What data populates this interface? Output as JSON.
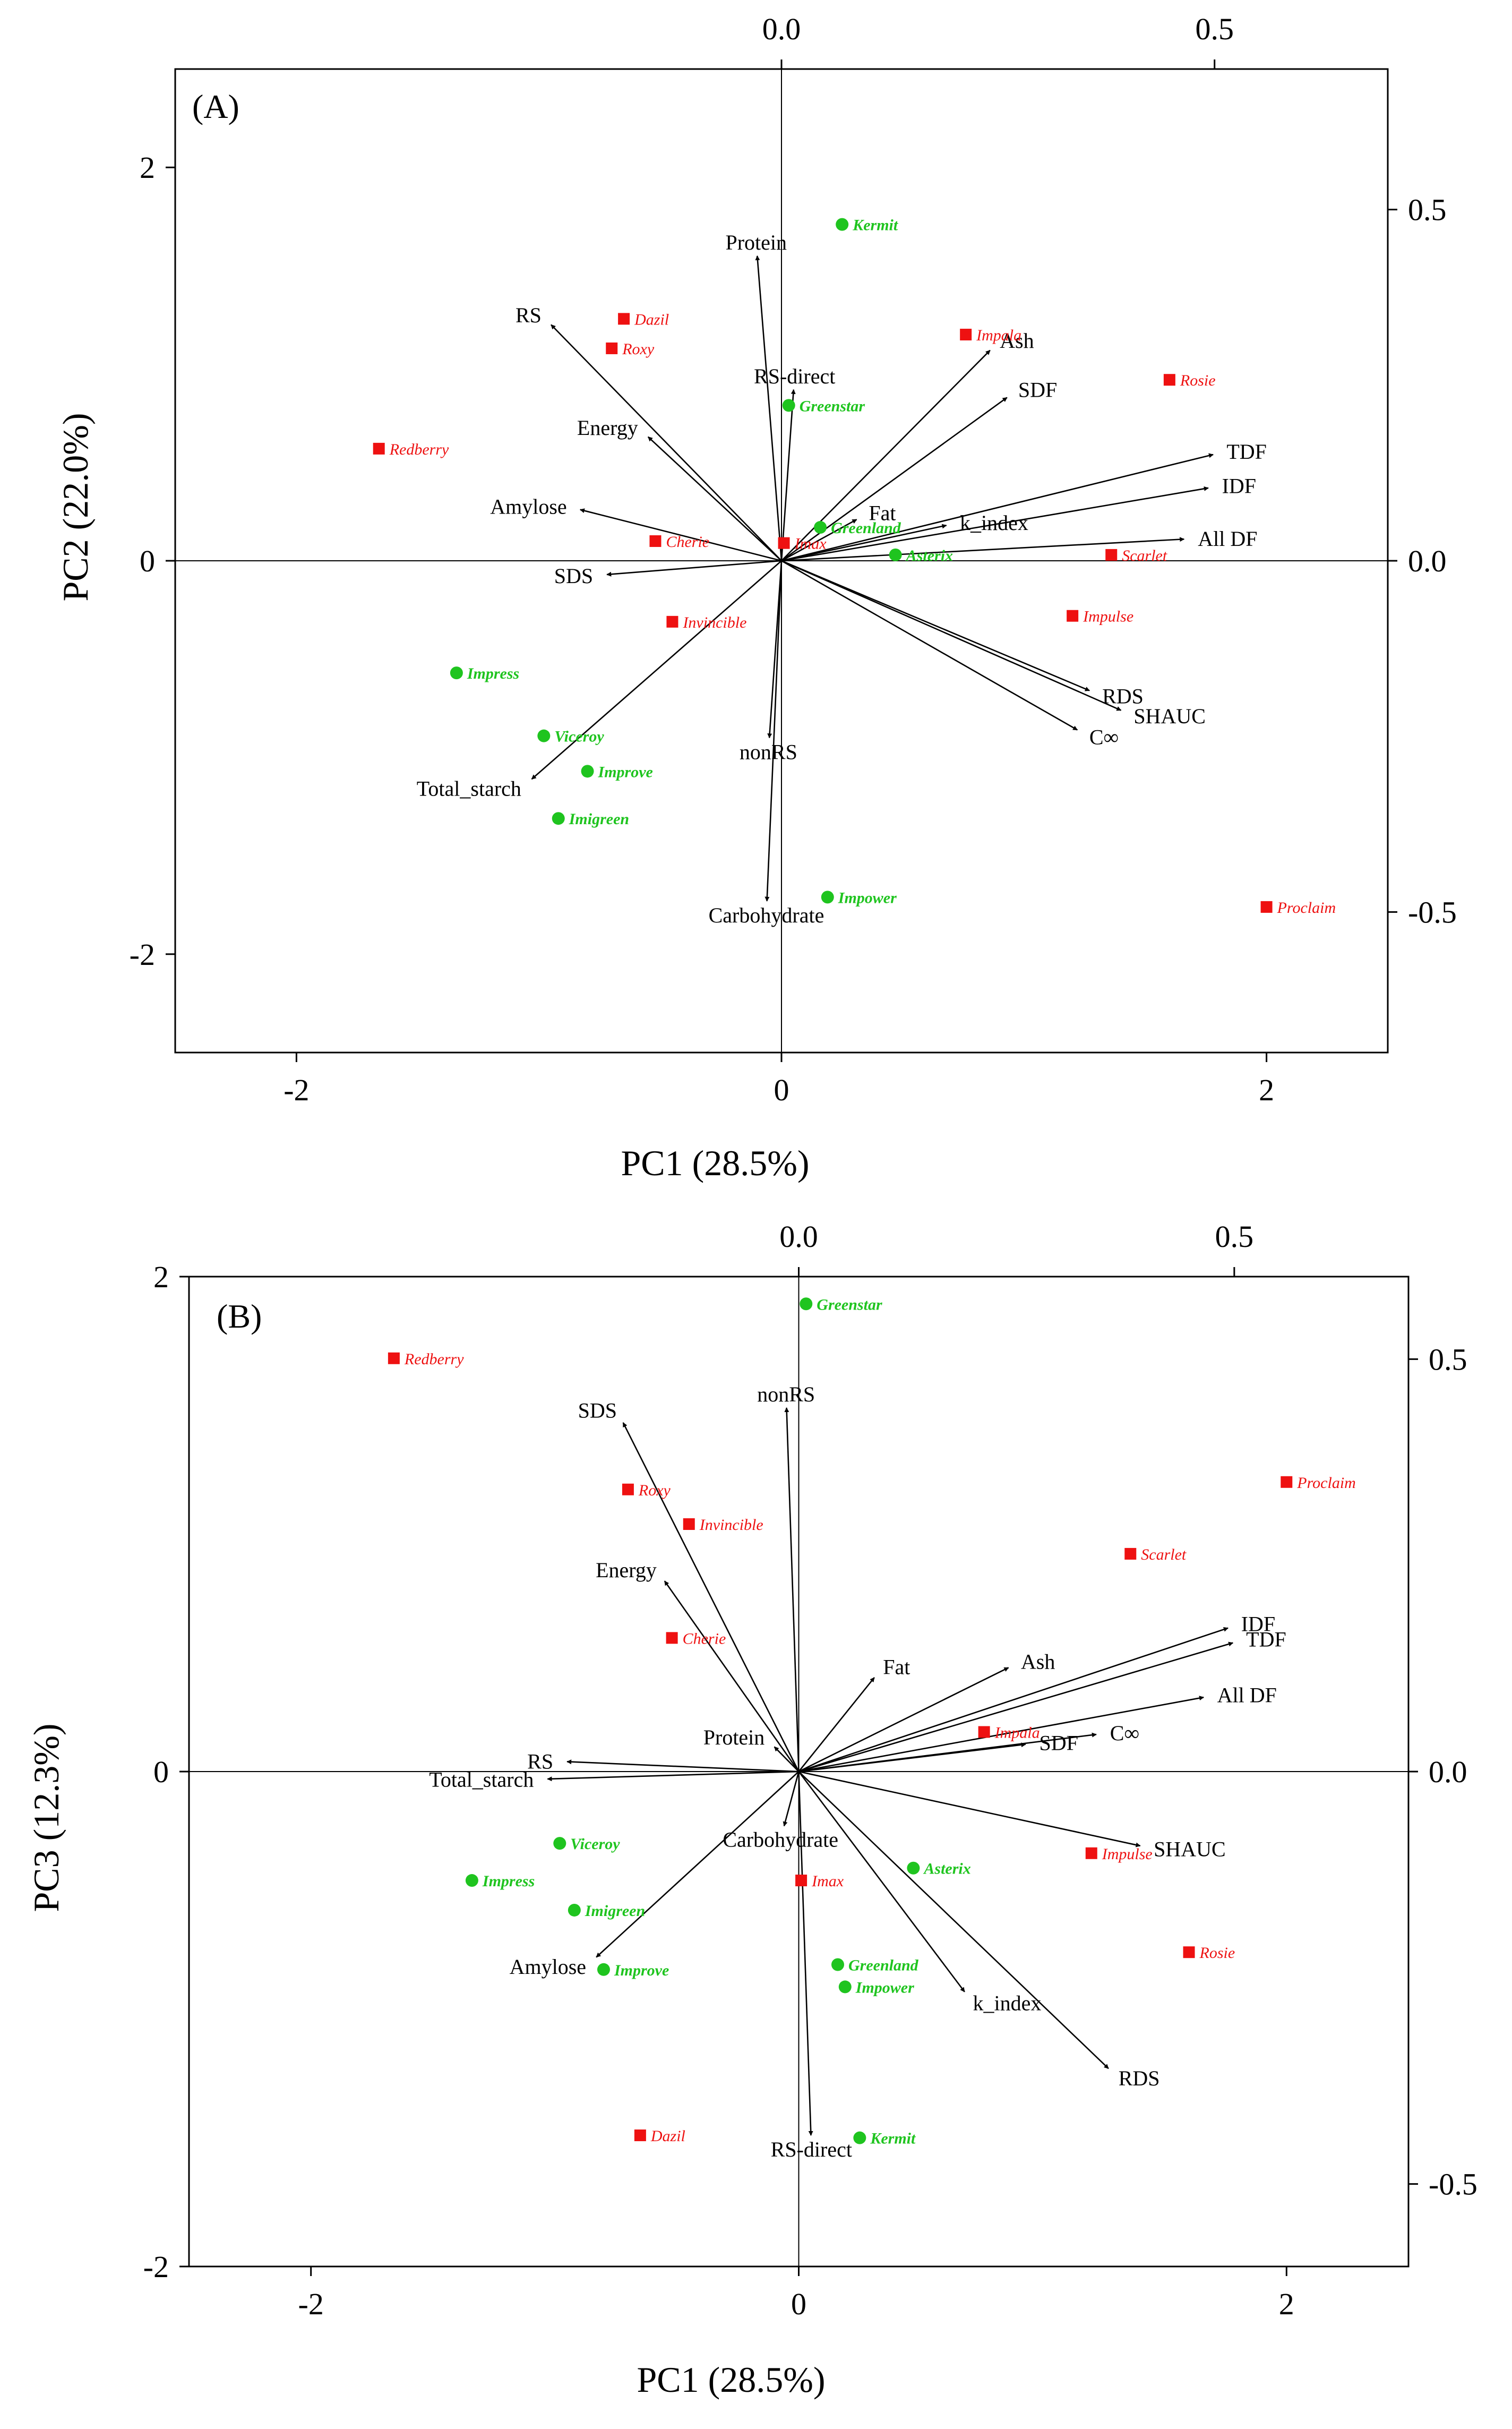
{
  "colors": {
    "red_group": "#ee1111",
    "green_group": "#1fc41f",
    "arrows": "#000000",
    "frame": "#000000"
  },
  "chart_data": [
    {
      "type": "scatter",
      "subtype": "biplot",
      "panel_label": "(A)",
      "xlabel": "PC1 (28.5%)",
      "ylabel": "PC2 (22.0%)",
      "xlim": [
        -2.5,
        2.5
      ],
      "ylim": [
        -2.5,
        2.5
      ],
      "top_axis": {
        "range": [
          -0.7,
          0.7
        ],
        "ticks": [
          "0.0",
          "0.5"
        ]
      },
      "right_axis": {
        "range": [
          -0.7,
          0.7
        ],
        "ticks": [
          "-0.5",
          "0.0",
          "0.5"
        ]
      },
      "xticks": [
        "-2",
        "0",
        "2"
      ],
      "yticks": [
        "-2",
        "0",
        "2"
      ],
      "cultivars": [
        {
          "name": "Kermit",
          "group": "green",
          "x": 0.25,
          "y": 1.71
        },
        {
          "name": "Dazil",
          "group": "red",
          "x": -0.65,
          "y": 1.23
        },
        {
          "name": "Roxy",
          "group": "red",
          "x": -0.7,
          "y": 1.08
        },
        {
          "name": "Impala",
          "group": "red",
          "x": 0.76,
          "y": 1.15
        },
        {
          "name": "Rosie",
          "group": "red",
          "x": 1.6,
          "y": 0.92
        },
        {
          "name": "Greenstar",
          "group": "green",
          "x": 0.03,
          "y": 0.79
        },
        {
          "name": "Redberry",
          "group": "red",
          "x": -1.66,
          "y": 0.57
        },
        {
          "name": "Greenland",
          "group": "green",
          "x": 0.16,
          "y": 0.17
        },
        {
          "name": "Imax",
          "group": "red",
          "x": 0.01,
          "y": 0.09
        },
        {
          "name": "Cherie",
          "group": "red",
          "x": -0.52,
          "y": 0.1
        },
        {
          "name": "Asterix",
          "group": "green",
          "x": 0.47,
          "y": 0.03
        },
        {
          "name": "Scarlet",
          "group": "red",
          "x": 1.36,
          "y": 0.03
        },
        {
          "name": "Invincible",
          "group": "red",
          "x": -0.45,
          "y": -0.31
        },
        {
          "name": "Impulse",
          "group": "red",
          "x": 1.2,
          "y": -0.28
        },
        {
          "name": "Impress",
          "group": "green",
          "x": -1.34,
          "y": -0.57
        },
        {
          "name": "Viceroy",
          "group": "green",
          "x": -0.98,
          "y": -0.89
        },
        {
          "name": "Improve",
          "group": "green",
          "x": -0.8,
          "y": -1.07
        },
        {
          "name": "Imigreen",
          "group": "green",
          "x": -0.92,
          "y": -1.31
        },
        {
          "name": "Impower",
          "group": "green",
          "x": 0.19,
          "y": -1.71
        },
        {
          "name": "Proclaim",
          "group": "red",
          "x": 2.0,
          "y": -1.76
        }
      ],
      "variables": [
        {
          "name": "Protein",
          "x": -0.1,
          "y": 1.55
        },
        {
          "name": "RS",
          "x": -0.95,
          "y": 1.2
        },
        {
          "name": "RS-direct",
          "x": 0.05,
          "y": 0.87
        },
        {
          "name": "Energy",
          "x": -0.55,
          "y": 0.63
        },
        {
          "name": "Amylose",
          "x": -0.83,
          "y": 0.26
        },
        {
          "name": "SDS",
          "x": -0.72,
          "y": -0.07
        },
        {
          "name": "Ash",
          "x": 0.86,
          "y": 1.07
        },
        {
          "name": "SDF",
          "x": 0.93,
          "y": 0.83
        },
        {
          "name": "TDF",
          "x": 1.78,
          "y": 0.54
        },
        {
          "name": "IDF",
          "x": 1.76,
          "y": 0.37
        },
        {
          "name": "All DF",
          "x": 1.66,
          "y": 0.11
        },
        {
          "name": "Fat",
          "x": 0.31,
          "y": 0.21
        },
        {
          "name": "k_index",
          "x": 0.68,
          "y": 0.18
        },
        {
          "name": "RDS",
          "x": 1.27,
          "y": -0.66
        },
        {
          "name": "SHAUC",
          "x": 1.4,
          "y": -0.76
        },
        {
          "name": "C∞",
          "x": 1.22,
          "y": -0.86
        },
        {
          "name": "nonRS",
          "x": -0.05,
          "y": -0.9
        },
        {
          "name": "Total_starch",
          "x": -1.03,
          "y": -1.11
        },
        {
          "name": "Carbohydrate",
          "x": -0.06,
          "y": -1.73
        }
      ]
    },
    {
      "type": "scatter",
      "subtype": "biplot",
      "panel_label": "(B)",
      "xlabel": "PC1 (28.5%)",
      "ylabel": "PC3 (12.3%)",
      "xlim": [
        -2.5,
        2.5
      ],
      "ylim": [
        -2.0,
        2.0
      ],
      "top_axis": {
        "range": [
          -0.7,
          0.7
        ],
        "ticks": [
          "0.0",
          "0.5"
        ]
      },
      "right_axis": {
        "range": [
          -0.6,
          0.6
        ],
        "ticks": [
          "-0.5",
          "0.0",
          "0.5"
        ]
      },
      "xticks": [
        "-2",
        "0",
        "2"
      ],
      "yticks": [
        "-2",
        "0",
        "2"
      ],
      "cultivars": [
        {
          "name": "Greenstar",
          "group": "green",
          "x": 0.03,
          "y": 1.89
        },
        {
          "name": "Redberry",
          "group": "red",
          "x": -1.66,
          "y": 1.67
        },
        {
          "name": "Proclaim",
          "group": "red",
          "x": 2.0,
          "y": 1.17
        },
        {
          "name": "Roxy",
          "group": "red",
          "x": -0.7,
          "y": 1.14
        },
        {
          "name": "Invincible",
          "group": "red",
          "x": -0.45,
          "y": 1.0
        },
        {
          "name": "Scarlet",
          "group": "red",
          "x": 1.36,
          "y": 0.88
        },
        {
          "name": "Cherie",
          "group": "red",
          "x": -0.52,
          "y": 0.54
        },
        {
          "name": "Impala",
          "group": "red",
          "x": 0.76,
          "y": 0.16
        },
        {
          "name": "Viceroy",
          "group": "green",
          "x": -0.98,
          "y": -0.29
        },
        {
          "name": "Impulse",
          "group": "red",
          "x": 1.2,
          "y": -0.33
        },
        {
          "name": "Asterix",
          "group": "green",
          "x": 0.47,
          "y": -0.39
        },
        {
          "name": "Impress",
          "group": "green",
          "x": -1.34,
          "y": -0.44
        },
        {
          "name": "Imax",
          "group": "red",
          "x": 0.01,
          "y": -0.44
        },
        {
          "name": "Imigreen",
          "group": "green",
          "x": -0.92,
          "y": -0.56
        },
        {
          "name": "Rosie",
          "group": "red",
          "x": 1.6,
          "y": -0.73
        },
        {
          "name": "Improve",
          "group": "green",
          "x": -0.8,
          "y": -0.8
        },
        {
          "name": "Greenland",
          "group": "green",
          "x": 0.16,
          "y": -0.78
        },
        {
          "name": "Impower",
          "group": "green",
          "x": 0.19,
          "y": -0.87
        },
        {
          "name": "Dazil",
          "group": "red",
          "x": -0.65,
          "y": -1.47
        },
        {
          "name": "Kermit",
          "group": "green",
          "x": 0.25,
          "y": -1.48
        }
      ],
      "variables": [
        {
          "name": "nonRS",
          "x": -0.05,
          "y": 1.47
        },
        {
          "name": "SDS",
          "x": -0.72,
          "y": 1.41
        },
        {
          "name": "Energy",
          "x": -0.55,
          "y": 0.77
        },
        {
          "name": "Fat",
          "x": 0.31,
          "y": 0.38
        },
        {
          "name": "Protein",
          "x": -0.1,
          "y": 0.1
        },
        {
          "name": "RS",
          "x": -0.95,
          "y": 0.04
        },
        {
          "name": "Total_starch",
          "x": -1.03,
          "y": -0.03
        },
        {
          "name": "Ash",
          "x": 0.86,
          "y": 0.42
        },
        {
          "name": "IDF",
          "x": 1.76,
          "y": 0.58
        },
        {
          "name": "TDF",
          "x": 1.78,
          "y": 0.52
        },
        {
          "name": "All DF",
          "x": 1.66,
          "y": 0.3
        },
        {
          "name": "C∞",
          "x": 1.22,
          "y": 0.15
        },
        {
          "name": "SDF",
          "x": 0.93,
          "y": 0.11
        },
        {
          "name": "SHAUC",
          "x": 1.4,
          "y": -0.3
        },
        {
          "name": "Carbohydrate",
          "x": -0.06,
          "y": -0.22
        },
        {
          "name": "Amylose",
          "x": -0.83,
          "y": -0.75
        },
        {
          "name": "k_index",
          "x": 0.68,
          "y": -0.89
        },
        {
          "name": "RDS",
          "x": 1.27,
          "y": -1.2
        },
        {
          "name": "RS-direct",
          "x": 0.05,
          "y": -1.47
        }
      ]
    }
  ]
}
